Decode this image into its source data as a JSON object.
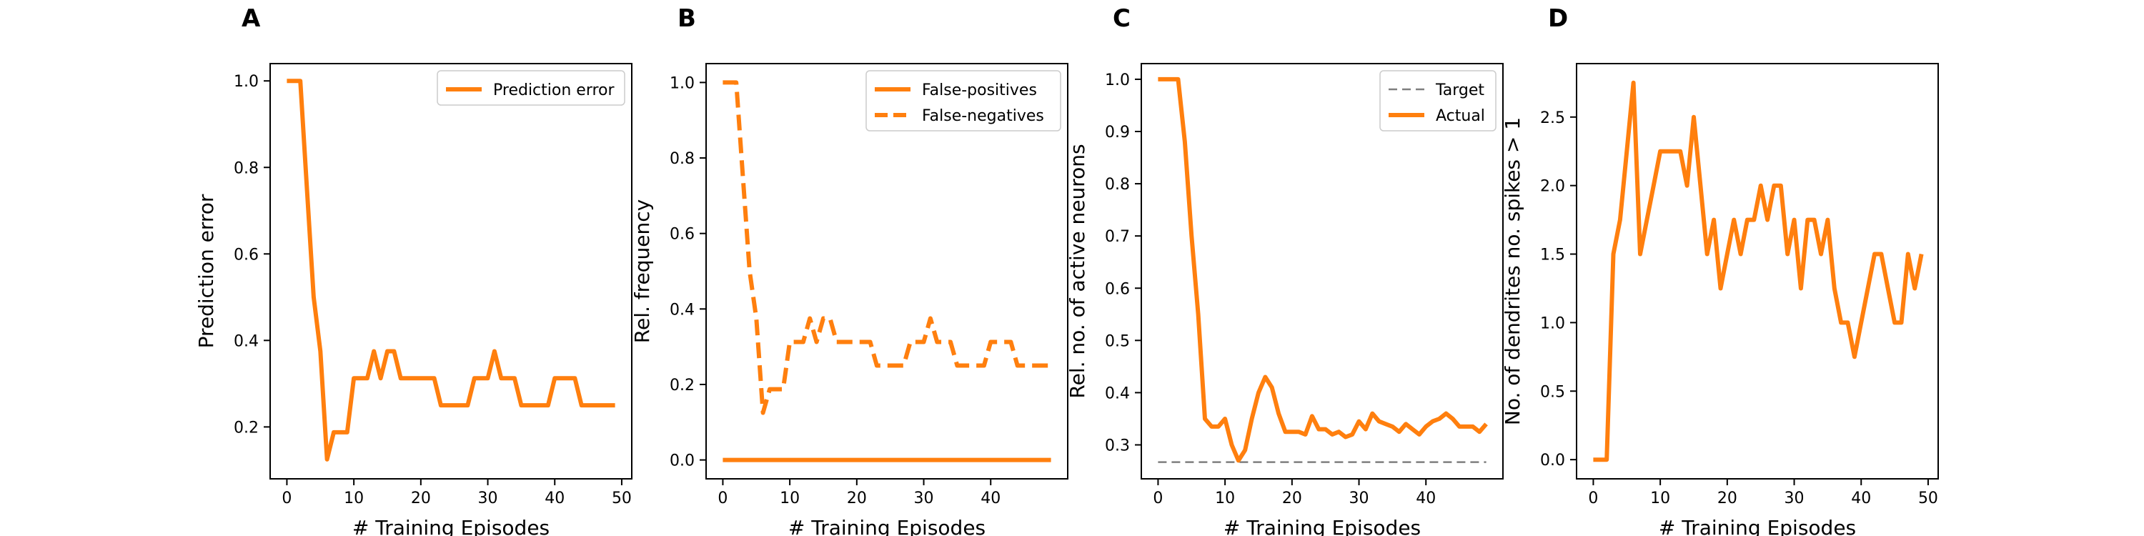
{
  "figure": {
    "color_line": "#ff7f0e",
    "color_target": "#7f7f7f",
    "panel_letters": [
      "A",
      "B",
      "C",
      "D"
    ]
  },
  "chart_data": [
    {
      "type": "line",
      "panel": "A",
      "xlabel": "# Training Episodes",
      "ylabel": "Prediction error",
      "xlim": [
        -2.5,
        51.5
      ],
      "ylim": [
        0.08,
        1.04
      ],
      "xticks": [
        0,
        10,
        20,
        30,
        40,
        50
      ],
      "yticks": [
        0.2,
        0.4,
        0.6,
        0.8,
        1.0
      ],
      "ytick_labels": [
        "0.2",
        "0.4",
        "0.6",
        "0.8",
        "1.0"
      ],
      "legend_position": "top-right",
      "x": [
        0,
        1,
        2,
        3,
        4,
        5,
        6,
        7,
        8,
        9,
        10,
        11,
        12,
        13,
        14,
        15,
        16,
        17,
        18,
        19,
        20,
        21,
        22,
        23,
        24,
        25,
        26,
        27,
        28,
        29,
        30,
        31,
        32,
        33,
        34,
        35,
        36,
        37,
        38,
        39,
        40,
        41,
        42,
        43,
        44,
        45,
        46,
        47,
        48,
        49
      ],
      "series": [
        {
          "name": "Prediction error",
          "style": "solid",
          "values": [
            1.0,
            1.0,
            1.0,
            0.75,
            0.5,
            0.375,
            0.125,
            0.1875,
            0.1875,
            0.1875,
            0.3125,
            0.3125,
            0.3125,
            0.375,
            0.3125,
            0.375,
            0.375,
            0.3125,
            0.3125,
            0.3125,
            0.3125,
            0.3125,
            0.3125,
            0.25,
            0.25,
            0.25,
            0.25,
            0.25,
            0.3125,
            0.3125,
            0.3125,
            0.375,
            0.3125,
            0.3125,
            0.3125,
            0.25,
            0.25,
            0.25,
            0.25,
            0.25,
            0.3125,
            0.3125,
            0.3125,
            0.3125,
            0.25,
            0.25,
            0.25,
            0.25,
            0.25,
            0.25
          ]
        }
      ]
    },
    {
      "type": "line",
      "panel": "B",
      "xlabel": "# Training Episodes",
      "ylabel": "Rel. frequency",
      "xlim": [
        -2.5,
        51.5
      ],
      "ylim": [
        -0.05,
        1.05
      ],
      "xticks": [
        0,
        10,
        20,
        30,
        40
      ],
      "yticks": [
        0.0,
        0.2,
        0.4,
        0.6,
        0.8,
        1.0
      ],
      "ytick_labels": [
        "0.0",
        "0.2",
        "0.4",
        "0.6",
        "0.8",
        "1.0"
      ],
      "legend_position": "top-right",
      "x": [
        0,
        1,
        2,
        3,
        4,
        5,
        6,
        7,
        8,
        9,
        10,
        11,
        12,
        13,
        14,
        15,
        16,
        17,
        18,
        19,
        20,
        21,
        22,
        23,
        24,
        25,
        26,
        27,
        28,
        29,
        30,
        31,
        32,
        33,
        34,
        35,
        36,
        37,
        38,
        39,
        40,
        41,
        42,
        43,
        44,
        45,
        46,
        47,
        48,
        49
      ],
      "series": [
        {
          "name": "False-positives",
          "style": "solid",
          "values": [
            0,
            0,
            0,
            0,
            0,
            0,
            0,
            0,
            0,
            0,
            0,
            0,
            0,
            0,
            0,
            0,
            0,
            0,
            0,
            0,
            0,
            0,
            0,
            0,
            0,
            0,
            0,
            0,
            0,
            0,
            0,
            0,
            0,
            0,
            0,
            0,
            0,
            0,
            0,
            0,
            0,
            0,
            0,
            0,
            0,
            0,
            0,
            0,
            0,
            0
          ]
        },
        {
          "name": "False-negatives",
          "style": "dashed",
          "values": [
            1.0,
            1.0,
            1.0,
            0.75,
            0.5,
            0.375,
            0.125,
            0.1875,
            0.1875,
            0.1875,
            0.3125,
            0.3125,
            0.3125,
            0.375,
            0.3125,
            0.375,
            0.375,
            0.3125,
            0.3125,
            0.3125,
            0.3125,
            0.3125,
            0.3125,
            0.25,
            0.25,
            0.25,
            0.25,
            0.25,
            0.3125,
            0.3125,
            0.3125,
            0.375,
            0.3125,
            0.3125,
            0.3125,
            0.25,
            0.25,
            0.25,
            0.25,
            0.25,
            0.3125,
            0.3125,
            0.3125,
            0.3125,
            0.25,
            0.25,
            0.25,
            0.25,
            0.25,
            0.25
          ]
        }
      ]
    },
    {
      "type": "line",
      "panel": "C",
      "xlabel": "# Training Episodes",
      "ylabel": "Rel. no. of active neurons",
      "xlim": [
        -2.5,
        51.5
      ],
      "ylim": [
        0.235,
        1.03
      ],
      "xticks": [
        0,
        10,
        20,
        30,
        40
      ],
      "yticks": [
        0.3,
        0.4,
        0.5,
        0.6,
        0.7,
        0.8,
        0.9,
        1.0
      ],
      "ytick_labels": [
        "0.3",
        "0.4",
        "0.5",
        "0.6",
        "0.7",
        "0.8",
        "0.9",
        "1.0"
      ],
      "legend_position": "top-right",
      "x": [
        0,
        1,
        2,
        3,
        4,
        5,
        6,
        7,
        8,
        9,
        10,
        11,
        12,
        13,
        14,
        15,
        16,
        17,
        18,
        19,
        20,
        21,
        22,
        23,
        24,
        25,
        26,
        27,
        28,
        29,
        30,
        31,
        32,
        33,
        34,
        35,
        36,
        37,
        38,
        39,
        40,
        41,
        42,
        43,
        44,
        45,
        46,
        47,
        48,
        49
      ],
      "series": [
        {
          "name": "Target",
          "style": "dashed",
          "values_constant": 0.267
        },
        {
          "name": "Actual",
          "style": "solid",
          "values": [
            1.0,
            1.0,
            1.0,
            1.0,
            0.88,
            0.7,
            0.55,
            0.35,
            0.335,
            0.335,
            0.35,
            0.3,
            0.27,
            0.29,
            0.35,
            0.4,
            0.43,
            0.41,
            0.36,
            0.325,
            0.325,
            0.325,
            0.32,
            0.355,
            0.33,
            0.33,
            0.32,
            0.325,
            0.315,
            0.32,
            0.345,
            0.33,
            0.36,
            0.345,
            0.34,
            0.335,
            0.325,
            0.34,
            0.33,
            0.32,
            0.335,
            0.345,
            0.35,
            0.36,
            0.35,
            0.335,
            0.335,
            0.335,
            0.325,
            0.34
          ]
        }
      ]
    },
    {
      "type": "line",
      "panel": "D",
      "xlabel": "# Training Episodes",
      "ylabel": "No. of dendrites no. spikes > 1",
      "xlim": [
        -2.5,
        51.5
      ],
      "ylim": [
        -0.14,
        2.89
      ],
      "xticks": [
        0,
        10,
        20,
        30,
        40,
        50
      ],
      "yticks": [
        0.0,
        0.5,
        1.0,
        1.5,
        2.0,
        2.5
      ],
      "ytick_labels": [
        "0.0",
        "0.5",
        "1.0",
        "1.5",
        "2.0",
        "2.5"
      ],
      "legend_position": "none",
      "x": [
        0,
        1,
        2,
        3,
        4,
        5,
        6,
        7,
        8,
        9,
        10,
        11,
        12,
        13,
        14,
        15,
        16,
        17,
        18,
        19,
        20,
        21,
        22,
        23,
        24,
        25,
        26,
        27,
        28,
        29,
        30,
        31,
        32,
        33,
        34,
        35,
        36,
        37,
        38,
        39,
        40,
        41,
        42,
        43,
        44,
        45,
        46,
        47,
        48,
        49
      ],
      "series": [
        {
          "name": "",
          "style": "solid",
          "values": [
            0,
            0,
            0,
            1.5,
            1.75,
            2.25,
            2.75,
            1.5,
            1.75,
            2.0,
            2.25,
            2.25,
            2.25,
            2.25,
            2.0,
            2.5,
            2.0,
            1.5,
            1.75,
            1.25,
            1.5,
            1.75,
            1.5,
            1.75,
            1.75,
            2.0,
            1.75,
            2.0,
            2.0,
            1.5,
            1.75,
            1.25,
            1.75,
            1.75,
            1.5,
            1.75,
            1.25,
            1.0,
            1.0,
            0.75,
            1.0,
            1.25,
            1.5,
            1.5,
            1.25,
            1.0,
            1.0,
            1.5,
            1.25,
            1.5
          ]
        }
      ]
    }
  ]
}
